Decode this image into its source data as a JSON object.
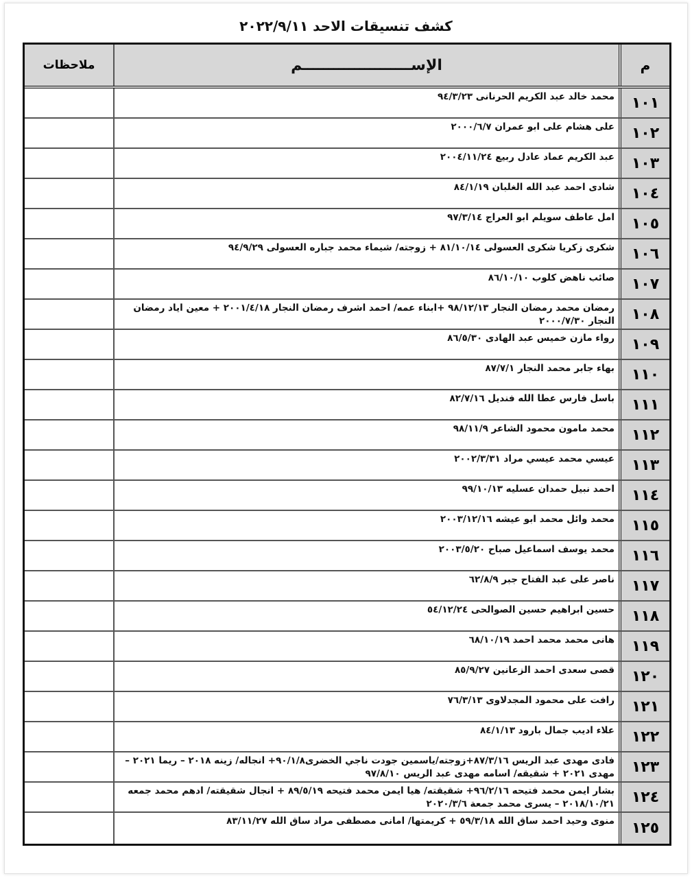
{
  "title": "كشف تنسيقات الاحد ٢٠٢٢/٩/١١",
  "headers": {
    "num": "م",
    "name": "الإســـــــــــــــــــــم",
    "notes": "ملاحظات"
  },
  "rows": [
    {
      "num": "١٠١",
      "name": "محمد خالد عبد الكريم الحرنانى ٩٤/٣/٢٣",
      "notes": ""
    },
    {
      "num": "١٠٢",
      "name": "على هشام على ابو عمران ٢٠٠٠/٦/٧",
      "notes": ""
    },
    {
      "num": "١٠٣",
      "name": "عبد الكريم عماد عادل ربيع ٢٠٠٤/١١/٢٤",
      "notes": ""
    },
    {
      "num": "١٠٤",
      "name": "شادى احمد عبد الله الغلبان ٨٤/١/١٩",
      "notes": ""
    },
    {
      "num": "١٠٥",
      "name": "امل عاطف سويلم ابو العراج ٩٧/٣/١٤",
      "notes": ""
    },
    {
      "num": "١٠٦",
      "name": "شكرى زكريا شكرى العسولى ٨١/١٠/١٤ + زوجته/ شيماء محمد جباره العسولى ٩٤/٩/٢٩",
      "notes": ""
    },
    {
      "num": "١٠٧",
      "name": "صائب ناهض كلوب  ٨٦/١٠/١٠",
      "notes": ""
    },
    {
      "num": "١٠٨",
      "name": "رمضان محمد رمضان النجار ٩٨/١٢/١٣ +ابناء عمه/ احمد اشرف رمضان النجار ٢٠٠١/٤/١٨ + معين اياد رمضان النجار ٢٠٠٠/٧/٣٠",
      "notes": ""
    },
    {
      "num": "١٠٩",
      "name": "رواء مازن خميس عبد الهادى ٨٦/٥/٣٠",
      "notes": ""
    },
    {
      "num": "١١٠",
      "name": "بهاء جابر محمد النجار ٨٧/٧/١",
      "notes": ""
    },
    {
      "num": "١١١",
      "name": "باسل فارس عطا الله فنديل ٨٢/٧/١٦",
      "notes": ""
    },
    {
      "num": "١١٢",
      "name": "محمد مامون محمود الشاعر ٩٨/١١/٩",
      "notes": ""
    },
    {
      "num": "١١٣",
      "name": "عيسي محمد عيسي مراد ٢٠٠٢/٣/٣١",
      "notes": ""
    },
    {
      "num": "١١٤",
      "name": "احمد نبيل حمدان عسليه ٩٩/١٠/١٣",
      "notes": ""
    },
    {
      "num": "١١٥",
      "name": "محمد وائل محمد ابو عيشه ٢٠٠٣/١٢/١٦",
      "notes": ""
    },
    {
      "num": "١١٦",
      "name": "محمد يوسف اسماعيل صباح ٢٠٠٣/٥/٢٠",
      "notes": ""
    },
    {
      "num": "١١٧",
      "name": "ناصر على عبد الفتاح جبر ٦٢/٨/٩",
      "notes": ""
    },
    {
      "num": "١١٨",
      "name": "حسين ابراهيم حسين الصوالحى ٥٤/١٢/٢٤",
      "notes": ""
    },
    {
      "num": "١١٩",
      "name": "هانى محمد محمد احمد ٦٨/١٠/١٩",
      "notes": ""
    },
    {
      "num": "١٢٠",
      "name": "قصى سعدى احمد الزعانين ٨٥/٩/٢٧",
      "notes": ""
    },
    {
      "num": "١٢١",
      "name": "رافت على محمود المجدلاوى ٧٦/٣/١٣",
      "notes": ""
    },
    {
      "num": "١٢٢",
      "name": "علاء اديب جمال بارود ٨٤/١/١٣",
      "notes": ""
    },
    {
      "num": "١٢٣",
      "name": "فادى مهدى عبد الريس ٨٧/٣/١٦+زوجته/ياسمين جودت ناجي الخضرى٩٠/١/٨+ انجاله/ زينه ٢٠١٨ – ريما ٢٠٢١ – مهدى ٢٠٢١ + شقيقه/ اسامه مهدى عبد الريس ٩٧/٨/١٠",
      "notes": ""
    },
    {
      "num": "١٢٤",
      "name": "بشار ايمن محمد فتيحه ٩٦/٢/١٦+ شقيقته/ هيا ايمن محمد فتيحه ٨٩/٥/١٩ + انجال شقيقته/ ادهم محمد جمعه ٢٠١٨/١٠/٢١ – يسرى محمد جمعة ٢٠٢٠/٣/٦",
      "notes": ""
    },
    {
      "num": "١٢٥",
      "name": "منوى وحيد احمد ساق الله ٥٩/٣/١٨ + كريمتها/ امانى مصطفى مراد ساق الله ٨٣/١١/٢٧",
      "notes": ""
    }
  ]
}
